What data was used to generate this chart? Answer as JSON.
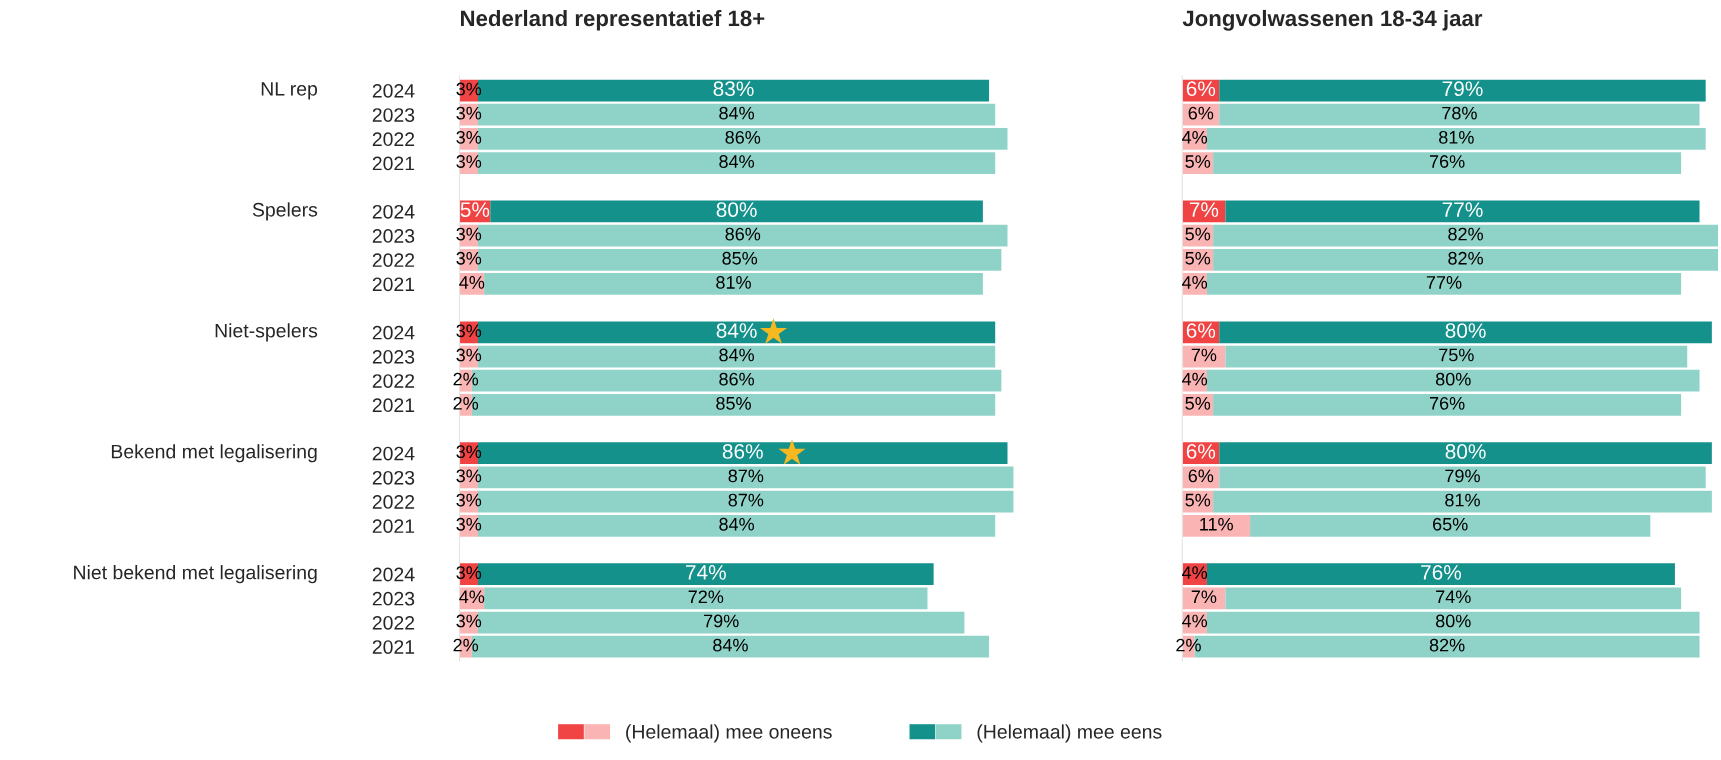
{
  "chart_data": [
    {
      "type": "bar",
      "orientation": "horizontal",
      "stacked": true,
      "grid": false,
      "legend": "bottom",
      "tick_labels": "y",
      "title": "Nederland representatief 18+",
      "categories": [
        "2024",
        "2023",
        "2022",
        "2021",
        null,
        "2024",
        "2023",
        "2022",
        "2021",
        null,
        "2024",
        "2023",
        "2022",
        "2021",
        null,
        "2024",
        "2023",
        "2022",
        "2021",
        null,
        "2024",
        "2023",
        "2022",
        "2021"
      ],
      "annotations": [
        "NL rep",
        "Spelers",
        "Niet-spelers",
        "Bekend met legalisering",
        "Niet bekend met legalisering"
      ],
      "series": [
        {
          "name": "(Helemaal) mee oneens",
          "colors": [
            "#f04444",
            "#fbb4b4",
            "#fbb4b4",
            "#fbb4b4",
            null,
            "#f04444",
            "#fbb4b4",
            "#fbb4b4",
            "#fbb4b4",
            null,
            "#f04444",
            "#fbb4b4",
            "#fbb4b4",
            "#fbb4b4",
            null,
            "#f04444",
            "#fbb4b4",
            "#fbb4b4",
            "#fbb4b4",
            null,
            "#f04444",
            "#fbb4b4",
            "#fbb4b4",
            "#fbb4b4"
          ],
          "values": [
            3,
            3,
            3,
            3,
            null,
            5,
            3,
            3,
            4,
            null,
            3,
            3,
            2,
            2,
            null,
            3,
            3,
            3,
            3,
            null,
            3,
            4,
            3,
            2
          ],
          "value_labels": [
            "3%",
            "3%",
            "3%",
            "3%",
            null,
            "5%",
            "3%",
            "3%",
            "4%",
            null,
            "3%",
            "3%",
            "2%",
            "2%",
            null,
            "3%",
            "3%",
            "3%",
            "3%",
            null,
            "3%",
            "4%",
            "3%",
            "2%"
          ]
        },
        {
          "name": "(Helemaal) mee eens",
          "colors": [
            "#15918b",
            "#8fd3c8",
            "#8fd3c8",
            "#8fd3c8",
            null,
            "#15918b",
            "#8fd3c8",
            "#8fd3c8",
            "#8fd3c8",
            null,
            "#15918b",
            "#8fd3c8",
            "#8fd3c8",
            "#8fd3c8",
            null,
            "#15918b",
            "#8fd3c8",
            "#8fd3c8",
            "#8fd3c8",
            null,
            "#15918b",
            "#8fd3c8",
            "#8fd3c8",
            "#8fd3c8"
          ],
          "values": [
            83,
            84,
            86,
            84,
            null,
            80,
            86,
            85,
            81,
            null,
            84,
            84,
            86,
            85,
            null,
            86,
            87,
            87,
            84,
            null,
            74,
            72,
            79,
            84
          ],
          "value_labels": [
            "83%",
            "84%",
            "86%",
            "84%",
            null,
            "80%",
            "86%",
            "85%",
            "81%",
            null,
            "84%",
            "84%",
            "86%",
            "85%",
            null,
            "86%",
            "87%",
            "87%",
            "84%",
            null,
            "74%",
            "72%",
            "79%",
            "84%"
          ]
        },
        {
          "type": "scatter",
          "marker": "star",
          "color": "#f5b821",
          "values": [
            null,
            null,
            null,
            null,
            null,
            null,
            null,
            null,
            null,
            null,
            51,
            null,
            null,
            null,
            null,
            54,
            null,
            null,
            null,
            null,
            null,
            null,
            null,
            null
          ]
        }
      ]
    },
    {
      "type": "bar",
      "orientation": "horizontal",
      "stacked": true,
      "grid": false,
      "title": "Jongvolwassenen 18-34 jaar",
      "categories": [
        null,
        null,
        null,
        null,
        null,
        null,
        null,
        null,
        null,
        null,
        null,
        null,
        null,
        null,
        null,
        null,
        null,
        null,
        null,
        null,
        null,
        null,
        null,
        null
      ],
      "series": [
        {
          "colors": [
            "#f04444",
            "#fbb4b4",
            "#fbb4b4",
            "#fbb4b4",
            null,
            "#f04444",
            "#fbb4b4",
            "#fbb4b4",
            "#fbb4b4",
            null,
            "#f04444",
            "#fbb4b4",
            "#fbb4b4",
            "#fbb4b4",
            null,
            "#f04444",
            "#fbb4b4",
            "#fbb4b4",
            "#fbb4b4",
            null,
            "#f04444",
            "#fbb4b4",
            "#fbb4b4",
            "#fbb4b4"
          ],
          "values": [
            6,
            6,
            4,
            5,
            null,
            7,
            5,
            5,
            4,
            null,
            6,
            7,
            4,
            5,
            null,
            6,
            6,
            5,
            11,
            null,
            4,
            7,
            4,
            2
          ],
          "value_labels": [
            "6%",
            "6%",
            "4%",
            "5%",
            null,
            "7%",
            "5%",
            "5%",
            "4%",
            null,
            "6%",
            "7%",
            "4%",
            "5%",
            null,
            "6%",
            "6%",
            "5%",
            "11%",
            null,
            "4%",
            "7%",
            "4%",
            "2%"
          ]
        },
        {
          "colors": [
            "#15918b",
            "#8fd3c8",
            "#8fd3c8",
            "#8fd3c8",
            null,
            "#15918b",
            "#8fd3c8",
            "#8fd3c8",
            "#8fd3c8",
            null,
            "#15918b",
            "#8fd3c8",
            "#8fd3c8",
            "#8fd3c8",
            null,
            "#15918b",
            "#8fd3c8",
            "#8fd3c8",
            "#8fd3c8",
            null,
            "#15918b",
            "#8fd3c8",
            "#8fd3c8",
            "#8fd3c8"
          ],
          "values": [
            79,
            78,
            81,
            76,
            null,
            77,
            82,
            82,
            77,
            null,
            80,
            75,
            80,
            76,
            null,
            80,
            79,
            81,
            65,
            null,
            76,
            74,
            80,
            82
          ],
          "value_labels": [
            "79%",
            "78%",
            "81%",
            "76%",
            null,
            "77%",
            "82%",
            "82%",
            "77%",
            null,
            "80%",
            "75%",
            "80%",
            "76%",
            null,
            "80%",
            "79%",
            "81%",
            "65%",
            null,
            "76%",
            "74%",
            "80%",
            "82%"
          ]
        }
      ]
    }
  ]
}
